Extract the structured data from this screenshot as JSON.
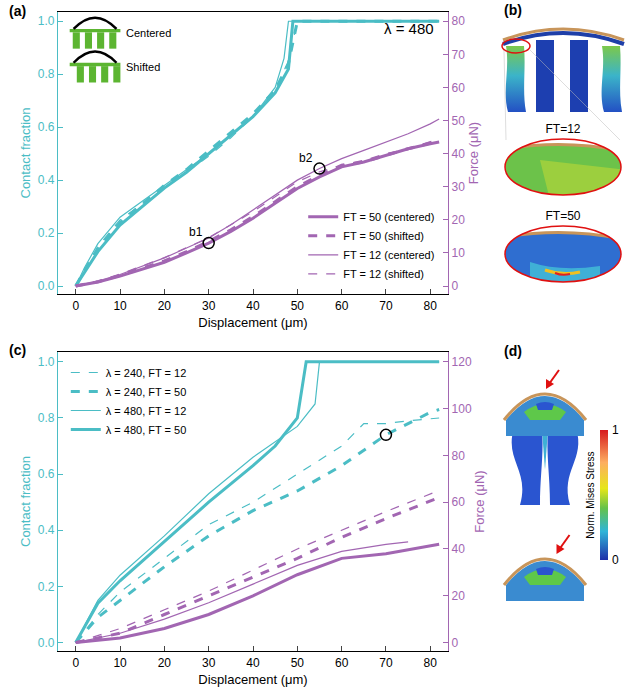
{
  "chart_data": [
    {
      "type": "line",
      "label": "(a)",
      "annotations": [
        "λ = 480"
      ],
      "insets": [
        "Centered",
        "Shifted"
      ],
      "x_label": "Displacement (μm)",
      "y_label": "Contact fraction",
      "y2_label": "Force (μN)",
      "xlim": [
        -4,
        84
      ],
      "xticks": [
        0,
        10,
        20,
        30,
        40,
        50,
        60,
        70,
        80
      ],
      "ylim": [
        -0.03,
        1.035
      ],
      "yticks": [
        {
          "value": 0,
          "label": "0.0"
        },
        {
          "value": 0.2,
          "label": "0.2"
        },
        {
          "value": 0.4,
          "label": "0.4"
        },
        {
          "value": 0.6,
          "label": "0.6"
        },
        {
          "value": 0.8,
          "label": "0.8"
        },
        {
          "value": 1,
          "label": "1.0"
        }
      ],
      "y2lim": [
        -2.4,
        82.8
      ],
      "y2ticks": [
        0,
        10,
        20,
        30,
        40,
        50,
        60,
        70,
        80
      ],
      "grid": false,
      "legend": "bottom right",
      "series": [
        {
          "name": "FT = 50 (centered)",
          "color": "#a266b2",
          "axis": "y2",
          "line_style": "thick-solid",
          "x": [
            0,
            5,
            10,
            15,
            20,
            25,
            30,
            35,
            40,
            45,
            50,
            55,
            60,
            65,
            70,
            75,
            80,
            82
          ],
          "values": [
            0,
            1.2,
            3,
            5,
            7.2,
            10,
            13,
            16.5,
            20.5,
            25,
            29.5,
            33,
            36,
            37.5,
            39.5,
            41.5,
            43,
            43.5
          ]
        },
        {
          "name": "FT = 50 (shifted)",
          "color": "#a266b2",
          "axis": "y2",
          "line_style": "thick-dash",
          "x": [
            0,
            5,
            10,
            15,
            20,
            25,
            30,
            35,
            40,
            45,
            50,
            55,
            60,
            65,
            70,
            75,
            80,
            82
          ],
          "values": [
            0,
            1.3,
            3.2,
            5.3,
            7.6,
            10.4,
            13.5,
            17,
            21,
            25.5,
            30,
            33.5,
            36.5,
            37.5,
            39.5,
            41.5,
            43.2,
            44
          ]
        },
        {
          "name": "FT = 12 (centered)",
          "color": "#a266b2",
          "axis": "y2",
          "line_style": "thin-solid",
          "x": [
            0,
            5,
            10,
            15,
            20,
            25,
            30,
            35,
            40,
            45,
            50,
            55,
            60,
            65,
            70,
            75,
            80,
            82
          ],
          "values": [
            0,
            1.5,
            3.5,
            6,
            8.5,
            11.5,
            14.5,
            18.5,
            23,
            27.5,
            32,
            35.5,
            38.5,
            41,
            43.5,
            46,
            49,
            50.5
          ]
        },
        {
          "name": "FT = 12 (shifted)",
          "color": "#a266b2",
          "axis": "y2",
          "line_style": "thin-dash",
          "x": [
            0,
            5,
            10,
            15,
            20,
            25,
            30,
            35,
            40,
            45,
            50,
            55,
            60,
            65,
            70,
            75,
            80,
            82
          ],
          "values": [
            0,
            1.5,
            3.6,
            6,
            8.6,
            11.6,
            14.6,
            18.5,
            22.5,
            27,
            31.5,
            34.5,
            36.5,
            38,
            40,
            41.5,
            43.5,
            44.5
          ]
        },
        {
          "name": "FT = 50 (centered)",
          "color": "#4bbdc5",
          "axis": "y",
          "line_style": "thick-solid",
          "x": [
            0,
            2,
            5,
            10,
            15,
            20,
            25,
            30,
            35,
            40,
            45,
            48,
            49,
            82
          ],
          "values": [
            0,
            0.05,
            0.13,
            0.23,
            0.3,
            0.37,
            0.43,
            0.5,
            0.57,
            0.64,
            0.73,
            0.82,
            1,
            1
          ]
        },
        {
          "name": "FT = 50 (shifted)",
          "color": "#4bbdc5",
          "axis": "y",
          "line_style": "thick-dash",
          "x": [
            0,
            2,
            5,
            10,
            15,
            20,
            25,
            30,
            35,
            40,
            45,
            48,
            50,
            82
          ],
          "values": [
            0,
            0.06,
            0.14,
            0.24,
            0.31,
            0.38,
            0.44,
            0.51,
            0.58,
            0.65,
            0.74,
            0.84,
            1,
            1
          ]
        },
        {
          "name": "FT = 12 (centered)",
          "color": "#4bbdc5",
          "axis": "y",
          "line_style": "thin-solid",
          "x": [
            0,
            2,
            5,
            10,
            15,
            20,
            25,
            30,
            35,
            40,
            45,
            47,
            48,
            82
          ],
          "values": [
            0,
            0.07,
            0.16,
            0.26,
            0.32,
            0.38,
            0.44,
            0.5,
            0.57,
            0.64,
            0.75,
            0.86,
            1,
            1
          ]
        },
        {
          "name": "FT = 12 (shifted)",
          "color": "#4bbdc5",
          "axis": "y",
          "line_style": "thin-dash",
          "x": [
            0,
            2,
            5,
            10,
            15,
            20,
            25,
            30,
            35,
            40,
            45,
            48,
            50,
            82
          ],
          "values": [
            0,
            0.06,
            0.15,
            0.25,
            0.31,
            0.37,
            0.43,
            0.49,
            0.56,
            0.64,
            0.74,
            0.85,
            1,
            1
          ]
        }
      ],
      "highlights": [
        {
          "text": "b1",
          "x": 30,
          "y": 13,
          "axis": "y2",
          "marker": "circle-open"
        },
        {
          "text": "b2",
          "x": 55,
          "y": 35.5,
          "axis": "y2",
          "marker": "circle-open"
        }
      ]
    },
    {
      "type": "line",
      "label": "(c)",
      "x_label": "Displacement (μm)",
      "y_label": "Contact fraction",
      "y2_label": "Force (μN)",
      "xlim": [
        -4,
        84
      ],
      "xticks": [
        0,
        10,
        20,
        30,
        40,
        50,
        60,
        70,
        80
      ],
      "ylim": [
        -0.03,
        1.035
      ],
      "yticks": [
        {
          "value": 0,
          "label": "0.0"
        },
        {
          "value": 0.2,
          "label": "0.2"
        },
        {
          "value": 0.4,
          "label": "0.4"
        },
        {
          "value": 0.6,
          "label": "0.6"
        },
        {
          "value": 0.8,
          "label": "0.8"
        },
        {
          "value": 1,
          "label": "1.0"
        }
      ],
      "y2lim": [
        -3.6,
        124.2
      ],
      "y2ticks": [
        0,
        20,
        40,
        60,
        80,
        100,
        120
      ],
      "grid": false,
      "legend": "top left",
      "series": [
        {
          "name": "λ = 240, FT = 12",
          "color": "#4bbdc5",
          "axis": "y",
          "line_style": "thin-dash",
          "x": [
            0,
            5,
            10,
            20,
            30,
            40,
            50,
            60,
            65,
            70,
            75,
            82
          ],
          "values": [
            0,
            0.1,
            0.18,
            0.3,
            0.42,
            0.5,
            0.6,
            0.7,
            0.78,
            0.78,
            0.79,
            0.8
          ]
        },
        {
          "name": "λ = 240, FT = 50",
          "color": "#4bbdc5",
          "axis": "y",
          "line_style": "thick-dash",
          "x": [
            0,
            5,
            10,
            20,
            30,
            40,
            50,
            60,
            70,
            80,
            82
          ],
          "values": [
            0,
            0.09,
            0.15,
            0.27,
            0.38,
            0.47,
            0.54,
            0.63,
            0.74,
            0.82,
            0.83
          ]
        },
        {
          "name": "λ = 480, FT = 12",
          "color": "#4bbdc5",
          "axis": "y",
          "line_style": "thin-solid",
          "x": [
            0,
            5,
            10,
            20,
            30,
            40,
            50,
            54,
            55,
            82
          ],
          "values": [
            0,
            0.15,
            0.24,
            0.38,
            0.53,
            0.66,
            0.77,
            0.85,
            1,
            1
          ]
        },
        {
          "name": "λ = 480, FT = 50",
          "color": "#4bbdc5",
          "axis": "y",
          "line_style": "thick-solid",
          "x": [
            0,
            5,
            10,
            20,
            30,
            40,
            45,
            50,
            52,
            82
          ],
          "values": [
            0,
            0.14,
            0.22,
            0.36,
            0.5,
            0.63,
            0.7,
            0.8,
            1,
            1
          ]
        },
        {
          "name": "λ = 240, FT = 12",
          "color": "#a266b2",
          "axis": "y2",
          "line_style": "thin-dash",
          "x": [
            0,
            10,
            20,
            30,
            40,
            50,
            60,
            70,
            82
          ],
          "values": [
            0,
            6,
            14,
            22,
            31,
            40,
            48,
            56,
            65
          ]
        },
        {
          "name": "λ = 240, FT = 50",
          "color": "#a266b2",
          "axis": "y2",
          "line_style": "thick-dash",
          "x": [
            0,
            10,
            20,
            30,
            40,
            50,
            60,
            70,
            82
          ],
          "values": [
            0,
            4,
            12,
            20,
            28,
            36,
            45,
            53,
            62
          ]
        },
        {
          "name": "λ = 480, FT = 12",
          "color": "#a266b2",
          "axis": "y2",
          "line_style": "thin-solid",
          "x": [
            0,
            10,
            20,
            30,
            40,
            50,
            60,
            70,
            75
          ],
          "values": [
            0,
            4,
            10,
            17,
            25,
            33,
            39,
            42,
            43
          ]
        },
        {
          "name": "λ = 480, FT = 50",
          "color": "#a266b2",
          "axis": "y2",
          "line_style": "thick-solid",
          "x": [
            0,
            10,
            20,
            30,
            40,
            50,
            60,
            70,
            82
          ],
          "values": [
            0,
            2,
            6,
            12,
            20,
            29,
            36,
            38,
            42
          ]
        }
      ],
      "highlights": [
        {
          "x": 70,
          "y": 0.74,
          "axis": "y",
          "marker": "circle-open"
        }
      ]
    }
  ],
  "panels": [
    {
      "label": "(b)",
      "texts": [
        "FT=12",
        "FT=50"
      ]
    },
    {
      "label": "(d)",
      "colorbar": {
        "title": "Norm. Mises Stress",
        "range": [
          0,
          1
        ],
        "ticks": [
          1,
          0
        ]
      }
    }
  ]
}
